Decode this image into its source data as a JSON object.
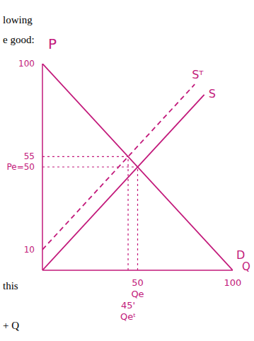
{
  "chart_data": {
    "type": "line",
    "x_label": "Q",
    "y_label": "P",
    "xlim": [
      0,
      100
    ],
    "ylim": [
      0,
      100
    ],
    "xticks": [
      {
        "value": 45,
        "label": "45'"
      },
      50,
      100
    ],
    "yticks": [
      10,
      {
        "value": 50,
        "label": "Pe=50"
      },
      55,
      100
    ],
    "series": [
      {
        "name": "D",
        "color": "#c2187a",
        "x": [
          0,
          100
        ],
        "values": [
          100,
          0
        ],
        "line_style": "solid"
      },
      {
        "name": "S",
        "color": "#c2187a",
        "x": [
          0,
          85
        ],
        "values": [
          0,
          85
        ],
        "line_style": "solid"
      },
      {
        "name": "Sᵀ",
        "color": "#c2187a",
        "x": [
          0,
          80
        ],
        "values": [
          10,
          90
        ],
        "line_style": "dashed"
      }
    ],
    "guides": [
      {
        "x": [
          0,
          50
        ],
        "y": [
          50,
          50
        ]
      },
      {
        "x": [
          0,
          45
        ],
        "y": [
          55,
          55
        ]
      },
      {
        "x": [
          50,
          50
        ],
        "y": [
          0,
          50
        ]
      },
      {
        "x": [
          45,
          45
        ],
        "y": [
          0,
          55
        ]
      }
    ],
    "annotations": [
      {
        "text": "Qe",
        "x": 50
      },
      {
        "text": "Qeᵗ",
        "x": 45
      }
    ],
    "page_text": [
      "lowing",
      "e good:",
      "this",
      "+ Q"
    ],
    "grid": false
  }
}
